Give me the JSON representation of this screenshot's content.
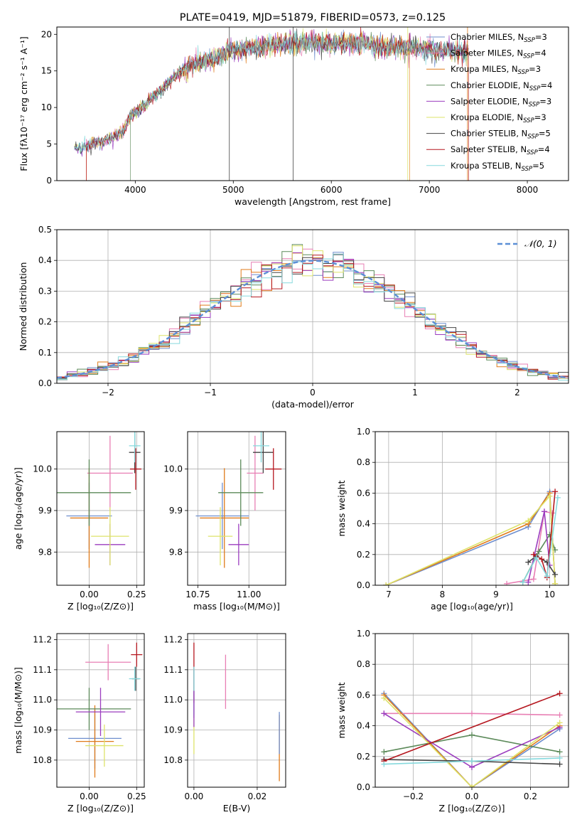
{
  "chart_data": [
    {
      "type": "line",
      "title": "PLATE=0419, MJD=51879, FIBERID=0573, z=0.125",
      "xlabel": "wavelength [Angstrom, rest frame]",
      "ylabel": "Flux [fλ10⁻¹⁷ erg cm⁻² s⁻¹ A⁻¹]",
      "xlim": [
        3200,
        8420
      ],
      "ylim": [
        0,
        21
      ],
      "xticks": [
        4000,
        5000,
        6000,
        7000,
        8000
      ],
      "yticks": [
        0,
        5,
        10,
        15,
        20
      ],
      "legend_position": "upper-right",
      "series": [
        {
          "name": "Chabrier MILES, N",
          "sub": "SSP",
          "suffix": "=3",
          "color": "#6f8fce"
        },
        {
          "name": "Salpeter MILES, N",
          "sub": "SSP",
          "suffix": "=4",
          "color": "#e87fb4"
        },
        {
          "name": "Kroupa MILES, N",
          "sub": "SSP",
          "suffix": "=3",
          "color": "#e07b1a"
        },
        {
          "name": "Chabrier ELODIE, N",
          "sub": "SSP",
          "suffix": "=4",
          "color": "#5c8a5a"
        },
        {
          "name": "Salpeter ELODIE, N",
          "sub": "SSP",
          "suffix": "=3",
          "color": "#9b3dbf"
        },
        {
          "name": "Kroupa ELODIE, N",
          "sub": "SSP",
          "suffix": "=3",
          "color": "#dde36a"
        },
        {
          "name": "Chabrier STELIB, N",
          "sub": "SSP",
          "suffix": "=5",
          "color": "#444444"
        },
        {
          "name": "Salpeter STELIB, N",
          "sub": "SSP",
          "suffix": "=4",
          "color": "#b5171f"
        },
        {
          "name": "Kroupa STELIB, N",
          "sub": "SSP",
          "suffix": "=5",
          "color": "#86d9dd"
        }
      ],
      "spectrum_shape": {
        "x": [
          3380,
          3500,
          3600,
          3700,
          3800,
          3900,
          3950,
          4050,
          4150,
          4250,
          4350,
          4450,
          4550,
          4700,
          4850,
          4950,
          5100,
          5250,
          5400,
          5600,
          5800,
          6000,
          6200,
          6400,
          6600,
          6800,
          7000,
          7200,
          7400
        ],
        "y": [
          4.3,
          4.7,
          5.2,
          5.5,
          6.1,
          7.2,
          8.9,
          9.8,
          11.0,
          12.2,
          13.6,
          14.8,
          15.6,
          16.3,
          17.0,
          17.6,
          18.0,
          18.3,
          18.6,
          18.8,
          18.9,
          18.8,
          18.7,
          18.5,
          18.3,
          18.2,
          17.9,
          17.8,
          17.5
        ]
      }
    },
    {
      "type": "bar",
      "ylabel": "Normed distribution",
      "xlabel": "(data-model)/error",
      "xlim": [
        -2.5,
        2.5
      ],
      "ylim": [
        0,
        0.5
      ],
      "xticks": [
        -2,
        -1,
        0,
        1,
        2
      ],
      "yticks": [
        0.0,
        0.1,
        0.2,
        0.3,
        0.4,
        0.5
      ],
      "legend": "𝒩(0, 1)",
      "legend_position": "upper-right",
      "reference_curve": "normal(0,1)",
      "bin_width": 0.1
    },
    {
      "type": "scatter",
      "xlabel": "Z [log₁₀(Z/Z⊙)]",
      "ylabel": "age  [log₁₀(age/yr)]",
      "xlim": [
        -0.17,
        0.29
      ],
      "ylim": [
        9.72,
        10.09
      ],
      "xticks": [
        0.0,
        0.25
      ],
      "yticks": [
        9.8,
        9.9,
        10.0
      ],
      "points": [
        {
          "x": -0.0,
          "y": 9.887,
          "xerr": 0.12,
          "yerr": 0.08,
          "color": "#6f8fce"
        },
        {
          "x": 0.11,
          "y": 9.99,
          "xerr": 0.12,
          "yerr": 0.09,
          "color": "#e87fb4"
        },
        {
          "x": 0.0,
          "y": 9.882,
          "xerr": 0.1,
          "yerr": 0.12,
          "color": "#e07b1a"
        },
        {
          "x": 0.0,
          "y": 9.943,
          "xerr": 0.22,
          "yerr": 0.08,
          "color": "#5c8a5a"
        },
        {
          "x": 0.11,
          "y": 9.818,
          "xerr": 0.08,
          "yerr": 0.05,
          "color": "#9b3dbf"
        },
        {
          "x": 0.11,
          "y": 9.838,
          "xerr": 0.1,
          "yerr": 0.07,
          "color": "#dde36a"
        },
        {
          "x": 0.24,
          "y": 10.04,
          "xerr": 0.03,
          "yerr": 0.05,
          "color": "#444444"
        },
        {
          "x": 0.245,
          "y": 10.0,
          "xerr": 0.03,
          "yerr": 0.05,
          "color": "#b5171f"
        },
        {
          "x": 0.24,
          "y": 10.056,
          "xerr": 0.03,
          "yerr": 0.04,
          "color": "#86d9dd"
        }
      ]
    },
    {
      "type": "scatter",
      "xlabel": "mass [log₁₀(M/M⊙)]",
      "xlim": [
        10.7,
        11.18
      ],
      "ylim": [
        9.72,
        10.09
      ],
      "xticks": [
        10.75,
        11.0
      ],
      "yticks": [
        9.8,
        9.9,
        10.0
      ],
      "points": [
        {
          "x": 10.87,
          "y": 9.887,
          "xerr": 0.13,
          "yerr": 0.08,
          "color": "#6f8fce"
        },
        {
          "x": 11.03,
          "y": 9.99,
          "xerr": 0.04,
          "yerr": 0.09,
          "color": "#e87fb4"
        },
        {
          "x": 10.88,
          "y": 9.882,
          "xerr": 0.12,
          "yerr": 0.12,
          "color": "#e07b1a"
        },
        {
          "x": 10.96,
          "y": 9.943,
          "xerr": 0.11,
          "yerr": 0.08,
          "color": "#5c8a5a"
        },
        {
          "x": 10.95,
          "y": 9.818,
          "xerr": 0.05,
          "yerr": 0.05,
          "color": "#9b3dbf"
        },
        {
          "x": 10.86,
          "y": 9.838,
          "xerr": 0.06,
          "yerr": 0.07,
          "color": "#dde36a"
        },
        {
          "x": 11.07,
          "y": 10.04,
          "xerr": 0.05,
          "yerr": 0.05,
          "color": "#444444"
        },
        {
          "x": 11.12,
          "y": 10.0,
          "xerr": 0.04,
          "yerr": 0.05,
          "color": "#b5171f"
        },
        {
          "x": 11.06,
          "y": 10.056,
          "xerr": 0.04,
          "yerr": 0.04,
          "color": "#86d9dd"
        }
      ]
    },
    {
      "type": "line",
      "xlabel": "age  [log₁₀(age/yr)]",
      "ylabel": "mass weight",
      "xlim": [
        6.75,
        10.35
      ],
      "ylim": [
        0,
        1
      ],
      "xticks": [
        7,
        8,
        9,
        10
      ],
      "yticks": [
        0.0,
        0.2,
        0.4,
        0.6,
        0.8,
        1.0
      ],
      "series": [
        {
          "color": "#6f8fce",
          "x": [
            6.95,
            9.6,
            10.0,
            10.1
          ],
          "y": [
            0.0,
            0.38,
            0.61,
            0.01
          ]
        },
        {
          "color": "#e87fb4",
          "x": [
            9.2,
            9.7,
            9.9,
            10.05
          ],
          "y": [
            0.01,
            0.04,
            0.48,
            0.47
          ]
        },
        {
          "color": "#e07b1a",
          "x": [
            6.95,
            9.6,
            10.0,
            10.1
          ],
          "y": [
            0.0,
            0.4,
            0.6,
            0.01
          ]
        },
        {
          "color": "#5c8a5a",
          "x": [
            9.5,
            9.8,
            10.0,
            10.1
          ],
          "y": [
            0.02,
            0.22,
            0.33,
            0.23
          ]
        },
        {
          "color": "#9b3dbf",
          "x": [
            9.6,
            9.9,
            10.0
          ],
          "y": [
            0.02,
            0.48,
            0.13
          ]
        },
        {
          "color": "#dde36a",
          "x": [
            6.95,
            9.6,
            10.0,
            10.1
          ],
          "y": [
            0.0,
            0.42,
            0.58,
            0.01
          ]
        },
        {
          "color": "#444444",
          "x": [
            9.6,
            9.75,
            9.95,
            10.1
          ],
          "y": [
            0.15,
            0.19,
            0.15,
            0.07
          ]
        },
        {
          "color": "#b5171f",
          "x": [
            9.7,
            9.85,
            9.95,
            10.1
          ],
          "y": [
            0.2,
            0.17,
            0.05,
            0.61
          ]
        },
        {
          "color": "#86d9dd",
          "x": [
            9.5,
            9.75,
            9.95,
            10.15
          ],
          "y": [
            0.02,
            0.18,
            0.06,
            0.57
          ]
        }
      ]
    },
    {
      "type": "scatter",
      "xlabel": "Z [log₁₀(Z/Z⊙)]",
      "ylabel": "mass [log₁₀(M/M⊙)]",
      "xlim": [
        -0.17,
        0.29
      ],
      "ylim": [
        10.71,
        11.22
      ],
      "xticks": [
        0.0,
        0.25
      ],
      "yticks": [
        10.8,
        10.9,
        11.0,
        11.1,
        11.2
      ],
      "points": [
        {
          "x": 0.03,
          "y": 10.872,
          "xerr": 0.14,
          "yerr": 0.1,
          "color": "#6f8fce"
        },
        {
          "x": 0.1,
          "y": 11.125,
          "xerr": 0.12,
          "yerr": 0.06,
          "color": "#e87fb4"
        },
        {
          "x": 0.03,
          "y": 10.862,
          "xerr": 0.1,
          "yerr": 0.12,
          "color": "#e07b1a"
        },
        {
          "x": 0.0,
          "y": 10.97,
          "xerr": 0.22,
          "yerr": 0.07,
          "color": "#5c8a5a"
        },
        {
          "x": 0.06,
          "y": 10.96,
          "xerr": 0.13,
          "yerr": 0.08,
          "color": "#9b3dbf"
        },
        {
          "x": 0.08,
          "y": 10.848,
          "xerr": 0.1,
          "yerr": 0.07,
          "color": "#dde36a"
        },
        {
          "x": 0.245,
          "y": 11.07,
          "xerr": 0.02,
          "yerr": 0.04,
          "color": "#444444"
        },
        {
          "x": 0.25,
          "y": 11.15,
          "xerr": 0.03,
          "yerr": 0.04,
          "color": "#b5171f"
        },
        {
          "x": 0.24,
          "y": 11.07,
          "xerr": 0.03,
          "yerr": 0.04,
          "color": "#86d9dd"
        }
      ]
    },
    {
      "type": "scatter",
      "xlabel": "E(B-V)",
      "xlim": [
        -0.002,
        0.029
      ],
      "ylim": [
        10.71,
        11.22
      ],
      "xticks": [
        0.0,
        0.02
      ],
      "yticks": [
        10.8,
        10.9,
        11.0,
        11.1,
        11.2
      ],
      "points": [
        {
          "x": 0.0,
          "y": 10.92,
          "yerr": 0.1,
          "color": "#dde36a"
        },
        {
          "x": 0.0,
          "y": 11.02,
          "yerr": 0.08,
          "color": "#6f8fce"
        },
        {
          "x": 0.0,
          "y": 11.09,
          "yerr": 0.1,
          "color": "#b5171f"
        },
        {
          "x": 0.0,
          "y": 11.03,
          "yerr": 0.08,
          "color": "#86d9dd"
        },
        {
          "x": 0.0,
          "y": 10.97,
          "yerr": 0.06,
          "color": "#9b3dbf"
        },
        {
          "x": 0.01,
          "y": 11.06,
          "yerr": 0.09,
          "color": "#e87fb4"
        },
        {
          "x": 0.027,
          "y": 10.84,
          "yerr": 0.11,
          "color": "#e07b1a"
        },
        {
          "x": 0.027,
          "y": 10.89,
          "yerr": 0.07,
          "color": "#6f8fce"
        }
      ]
    },
    {
      "type": "line",
      "xlabel": "Z [log₁₀(Z/Z⊙)]",
      "ylabel": "mass weight",
      "xlim": [
        -0.33,
        0.33
      ],
      "ylim": [
        0,
        1
      ],
      "xticks": [
        -0.2,
        0.0,
        0.2
      ],
      "yticks": [
        0.0,
        0.2,
        0.4,
        0.6,
        0.8,
        1.0
      ],
      "series": [
        {
          "color": "#6f8fce",
          "x": [
            -0.3,
            0.0,
            0.3
          ],
          "y": [
            0.61,
            0.0,
            0.38
          ]
        },
        {
          "color": "#e87fb4",
          "x": [
            -0.3,
            0.0,
            0.3
          ],
          "y": [
            0.48,
            0.48,
            0.47
          ]
        },
        {
          "color": "#e07b1a",
          "x": [
            -0.3,
            0.0,
            0.3
          ],
          "y": [
            0.6,
            0.0,
            0.4
          ]
        },
        {
          "color": "#5c8a5a",
          "x": [
            -0.3,
            0.0,
            0.3
          ],
          "y": [
            0.23,
            0.34,
            0.23
          ]
        },
        {
          "color": "#9b3dbf",
          "x": [
            -0.3,
            0.0,
            0.3
          ],
          "y": [
            0.48,
            0.13,
            0.39
          ]
        },
        {
          "color": "#dde36a",
          "x": [
            -0.3,
            0.0,
            0.3
          ],
          "y": [
            0.58,
            0.0,
            0.42
          ]
        },
        {
          "color": "#444444",
          "x": [
            -0.3,
            0.0,
            0.3
          ],
          "y": [
            0.18,
            0.17,
            0.15
          ]
        },
        {
          "color": "#b5171f",
          "x": [
            -0.3,
            0.3
          ],
          "y": [
            0.17,
            0.61
          ]
        },
        {
          "color": "#86d9dd",
          "x": [
            -0.3,
            0.0,
            0.3
          ],
          "y": [
            0.15,
            0.17,
            0.19
          ]
        }
      ]
    }
  ]
}
